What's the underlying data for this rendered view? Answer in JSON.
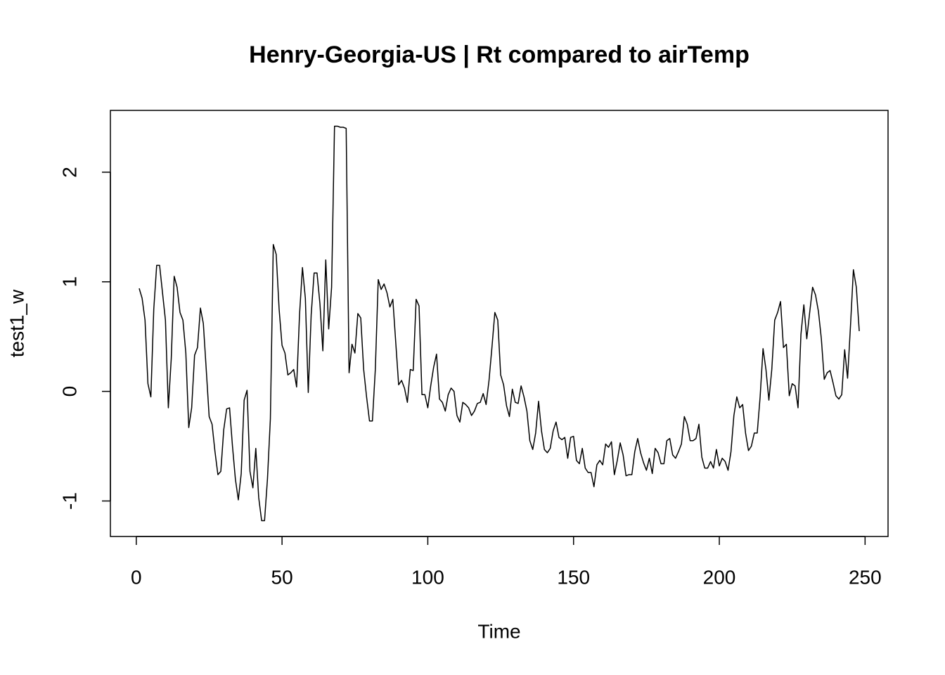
{
  "chart_data": {
    "type": "line",
    "title": "Henry-Georgia-US | Rt compared to airTemp",
    "xlabel": "Time",
    "ylabel": "test1_w",
    "color": "#000000",
    "xlim": [
      -8.88,
      257.88
    ],
    "ylim": [
      -1.324,
      2.564
    ],
    "xticks": [
      0,
      50,
      100,
      150,
      200,
      250
    ],
    "yticks": [
      -1,
      0,
      1,
      2
    ],
    "x": [
      1,
      2,
      3,
      4,
      5,
      6,
      7,
      8,
      9,
      10,
      11,
      12,
      13,
      14,
      15,
      16,
      17,
      18,
      19,
      20,
      21,
      22,
      23,
      24,
      25,
      26,
      27,
      28,
      29,
      30,
      31,
      32,
      33,
      34,
      35,
      36,
      37,
      38,
      39,
      40,
      41,
      42,
      43,
      44,
      45,
      46,
      47,
      48,
      49,
      50,
      51,
      52,
      53,
      54,
      55,
      56,
      57,
      58,
      59,
      60,
      61,
      62,
      63,
      64,
      65,
      66,
      67,
      68,
      69,
      70,
      71,
      72,
      73,
      74,
      75,
      76,
      77,
      78,
      79,
      80,
      81,
      82,
      83,
      84,
      85,
      86,
      87,
      88,
      89,
      90,
      91,
      92,
      93,
      94,
      95,
      96,
      97,
      98,
      99,
      100,
      101,
      102,
      103,
      104,
      105,
      106,
      107,
      108,
      109,
      110,
      111,
      112,
      113,
      114,
      115,
      116,
      117,
      118,
      119,
      120,
      121,
      122,
      123,
      124,
      125,
      126,
      127,
      128,
      129,
      130,
      131,
      132,
      133,
      134,
      135,
      136,
      137,
      138,
      139,
      140,
      141,
      142,
      143,
      144,
      145,
      146,
      147,
      148,
      149,
      150,
      151,
      152,
      153,
      154,
      155,
      156,
      157,
      158,
      159,
      160,
      161,
      162,
      163,
      164,
      165,
      166,
      167,
      168,
      169,
      170,
      171,
      172,
      173,
      174,
      175,
      176,
      177,
      178,
      179,
      180,
      181,
      182,
      183,
      184,
      185,
      186,
      187,
      188,
      189,
      190,
      191,
      192,
      193,
      194,
      195,
      196,
      197,
      198,
      199,
      200,
      201,
      202,
      203,
      204,
      205,
      206,
      207,
      208,
      209,
      210,
      211,
      212,
      213,
      214,
      215,
      216,
      217,
      218,
      219,
      220,
      221,
      222,
      223,
      224,
      225,
      226,
      227,
      228,
      229,
      230,
      231,
      232,
      233,
      234,
      235,
      236,
      237,
      238,
      239,
      240,
      241,
      242,
      243,
      244,
      245,
      246,
      247,
      248
    ],
    "values": [
      0.94,
      0.85,
      0.65,
      0.07,
      -0.05,
      0.75,
      1.15,
      1.15,
      0.9,
      0.65,
      -0.15,
      0.3,
      1.05,
      0.95,
      0.72,
      0.65,
      0.35,
      -0.33,
      -0.15,
      0.33,
      0.4,
      0.76,
      0.62,
      0.2,
      -0.23,
      -0.3,
      -0.55,
      -0.76,
      -0.73,
      -0.35,
      -0.16,
      -0.15,
      -0.5,
      -0.8,
      -0.99,
      -0.75,
      -0.08,
      0.01,
      -0.73,
      -0.88,
      -0.52,
      -0.97,
      -1.18,
      -1.18,
      -0.8,
      -0.25,
      1.34,
      1.25,
      0.75,
      0.42,
      0.35,
      0.15,
      0.17,
      0.2,
      0.04,
      0.7,
      1.13,
      0.85,
      -0.01,
      0.7,
      1.08,
      1.08,
      0.8,
      0.37,
      1.2,
      0.57,
      0.95,
      2.42,
      2.42,
      2.41,
      2.41,
      2.4,
      0.17,
      0.43,
      0.35,
      0.71,
      0.67,
      0.2,
      -0.05,
      -0.27,
      -0.27,
      0.2,
      1.02,
      0.93,
      0.98,
      0.9,
      0.77,
      0.84,
      0.45,
      0.06,
      0.1,
      0.03,
      -0.1,
      0.2,
      0.19,
      0.84,
      0.78,
      -0.03,
      -0.03,
      -0.15,
      0.05,
      0.22,
      0.34,
      -0.07,
      -0.1,
      -0.18,
      -0.03,
      0.03,
      0.0,
      -0.22,
      -0.28,
      -0.1,
      -0.12,
      -0.15,
      -0.22,
      -0.18,
      -0.11,
      -0.1,
      -0.02,
      -0.12,
      0.1,
      0.4,
      0.72,
      0.65,
      0.15,
      0.06,
      -0.13,
      -0.23,
      0.02,
      -0.1,
      -0.11,
      0.05,
      -0.05,
      -0.18,
      -0.45,
      -0.53,
      -0.38,
      -0.09,
      -0.36,
      -0.53,
      -0.56,
      -0.52,
      -0.36,
      -0.28,
      -0.42,
      -0.44,
      -0.42,
      -0.61,
      -0.42,
      -0.41,
      -0.63,
      -0.66,
      -0.52,
      -0.7,
      -0.74,
      -0.74,
      -0.87,
      -0.67,
      -0.63,
      -0.67,
      -0.48,
      -0.51,
      -0.46,
      -0.76,
      -0.63,
      -0.47,
      -0.58,
      -0.77,
      -0.76,
      -0.76,
      -0.55,
      -0.43,
      -0.56,
      -0.65,
      -0.72,
      -0.61,
      -0.75,
      -0.52,
      -0.56,
      -0.66,
      -0.66,
      -0.45,
      -0.43,
      -0.58,
      -0.61,
      -0.55,
      -0.48,
      -0.23,
      -0.3,
      -0.45,
      -0.45,
      -0.43,
      -0.3,
      -0.6,
      -0.7,
      -0.7,
      -0.64,
      -0.7,
      -0.53,
      -0.68,
      -0.61,
      -0.64,
      -0.72,
      -0.55,
      -0.22,
      -0.05,
      -0.15,
      -0.12,
      -0.38,
      -0.54,
      -0.5,
      -0.38,
      -0.38,
      -0.05,
      0.39,
      0.2,
      -0.08,
      0.2,
      0.65,
      0.72,
      0.82,
      0.4,
      0.43,
      -0.04,
      0.07,
      0.05,
      -0.15,
      0.52,
      0.79,
      0.48,
      0.72,
      0.95,
      0.88,
      0.73,
      0.48,
      0.11,
      0.17,
      0.19,
      0.08,
      -0.04,
      -0.07,
      -0.03,
      0.38,
      0.12,
      0.6,
      1.11,
      0.95,
      0.55
    ]
  }
}
